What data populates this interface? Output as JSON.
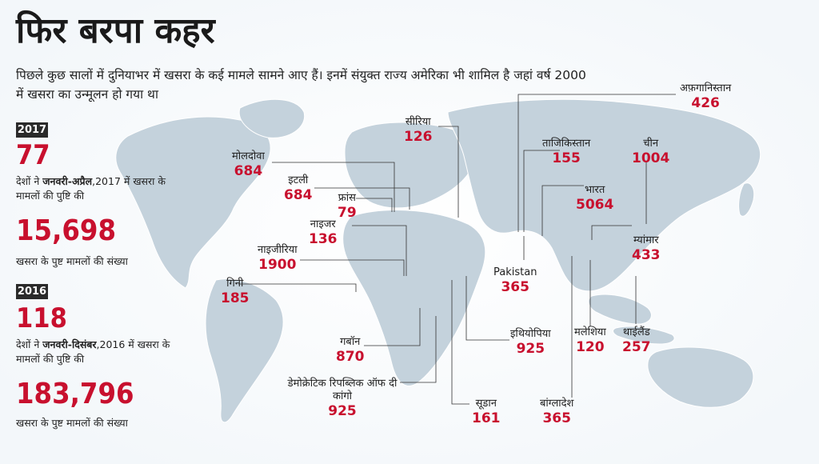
{
  "title": "फिर बरपा कहर",
  "subtitle": "पिछले कुछ सालों में दुनियाभर में खसरा के कई मामले सामने आए हैं। इनमें संयुक्त राज्य अमेरिका भी शामिल है जहां वर्ष 2000 में खसरा का उन्मूलन हो गया था",
  "stats": [
    {
      "year": "2017",
      "countries": "77",
      "countries_text_pre": "देशों ने ",
      "period": "जनवरी-अप्रैल",
      "countries_text_post": ",2017 में खसरा के मामलों की पुष्टि की",
      "cases": "15,698",
      "cases_text": "खसरा के पुष्ट मामलों की संख्या"
    },
    {
      "year": "2016",
      "countries": "118",
      "countries_text_pre": "देशों ने ",
      "period": "जनवरी-दिसंबर",
      "countries_text_post": ",2016 में खसरा के मामलों की पुष्टि की",
      "cases": "183,796",
      "cases_text": "खसरा के पुष्ट मामलों की संख्या"
    }
  ],
  "countries": [
    {
      "name": "सीरिया",
      "value": "126"
    },
    {
      "name": "अफ़गानिस्तान",
      "value": "426"
    },
    {
      "name": "मोलदोवा",
      "value": "684"
    },
    {
      "name": "इटली",
      "value": "684"
    },
    {
      "name": "फ्रांस",
      "value": "79"
    },
    {
      "name": "नाइजर",
      "value": "136"
    },
    {
      "name": "नाइजीरिया",
      "value": "1900"
    },
    {
      "name": "गिनी",
      "value": "185"
    },
    {
      "name": "गबॉन",
      "value": "870"
    },
    {
      "name": "डेमोक्रेटिक रिपब्लिक ऑफ दी कांगो",
      "value": "925"
    },
    {
      "name": "सूडान",
      "value": "161"
    },
    {
      "name": "इथियोपिया",
      "value": "925"
    },
    {
      "name": "Pakistan",
      "value": "365"
    },
    {
      "name": "ताजिकिस्तान",
      "value": "155"
    },
    {
      "name": "चीन",
      "value": "1004"
    },
    {
      "name": "भारत",
      "value": "5064"
    },
    {
      "name": "म्यांमार",
      "value": "433"
    },
    {
      "name": "मलेशिया",
      "value": "120"
    },
    {
      "name": "थाईलैंड",
      "value": "257"
    },
    {
      "name": "बांग्लादेश",
      "value": "365"
    }
  ]
}
